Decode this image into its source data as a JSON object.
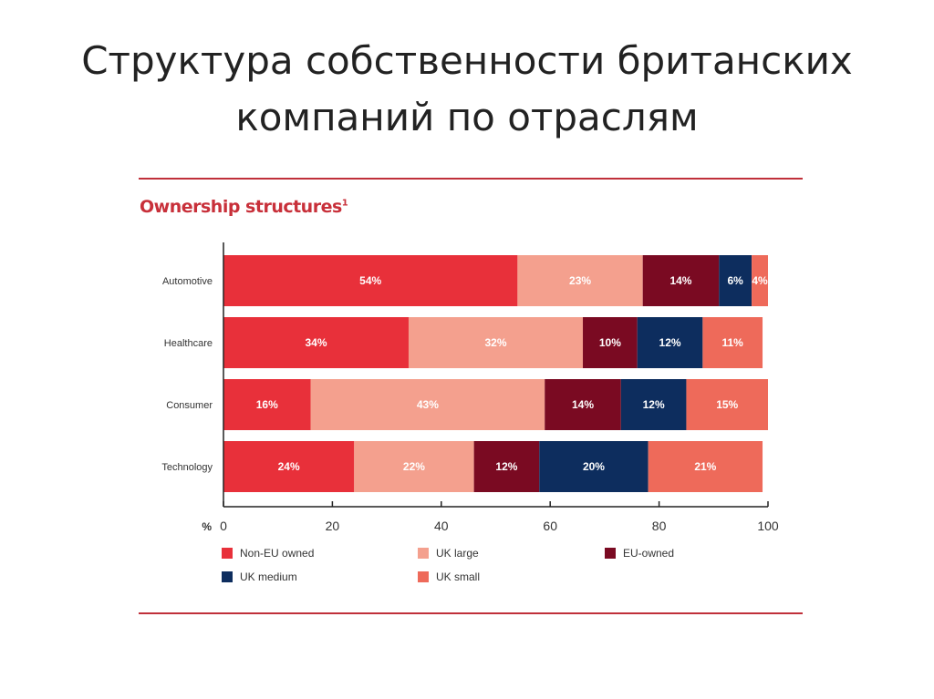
{
  "slide_title": "Структура собственности британских компаний по отраслям",
  "chart_data": {
    "type": "bar",
    "orientation": "horizontal",
    "stacked": true,
    "title": "Ownership structures",
    "title_footnote": "1",
    "xlabel": "%",
    "xlim": [
      0,
      100
    ],
    "xticks": [
      0,
      20,
      40,
      60,
      80,
      100
    ],
    "grid": false,
    "legend_position": "bottom",
    "categories": [
      "Automotive",
      "Healthcare",
      "Consumer",
      "Technology"
    ],
    "series": [
      {
        "name": "Non-EU owned",
        "color": "#e8303a",
        "values": [
          54,
          34,
          16,
          24
        ]
      },
      {
        "name": "UK large",
        "color": "#f4a08e",
        "values": [
          23,
          32,
          43,
          22
        ]
      },
      {
        "name": "EU-owned",
        "color": "#7a0a22",
        "values": [
          14,
          10,
          14,
          12
        ]
      },
      {
        "name": "UK medium",
        "color": "#0d2d5e",
        "values": [
          6,
          12,
          12,
          20
        ]
      },
      {
        "name": "UK small",
        "color": "#ee6a5a",
        "values": [
          4,
          11,
          15,
          21
        ]
      }
    ],
    "legend_order": [
      "Non-EU owned",
      "UK large",
      "EU-owned",
      "UK medium",
      "UK small"
    ]
  }
}
